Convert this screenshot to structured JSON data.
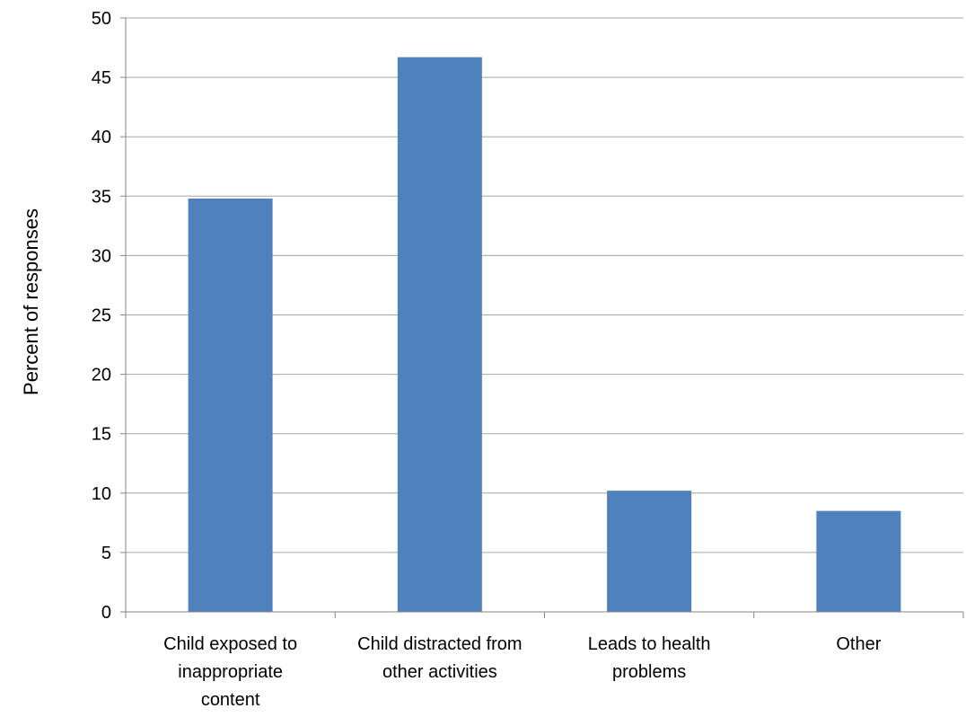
{
  "chart_data": {
    "type": "bar",
    "title": "",
    "xlabel": "",
    "ylabel": "Percent of responses",
    "ylim": [
      0,
      50
    ],
    "ytick_step": 5,
    "grid": true,
    "legend": "none",
    "categories": [
      "Child exposed to inappropriate content",
      "Child distracted from other activities",
      "Leads to health problems",
      "Other"
    ],
    "category_label_lines": [
      [
        "Child exposed to",
        "inappropriate",
        "content"
      ],
      [
        "Child distracted from",
        "other activities"
      ],
      [
        "Leads to health",
        "problems"
      ],
      [
        "Other"
      ]
    ],
    "series": [
      {
        "values": [
          34.8,
          46.7,
          10.2,
          8.5
        ],
        "color": "#4F81BD"
      }
    ],
    "colors": {
      "bar": "#4F81BD",
      "gridline": "#A6A6A6",
      "axis": "#868686",
      "text": "#000000"
    }
  }
}
